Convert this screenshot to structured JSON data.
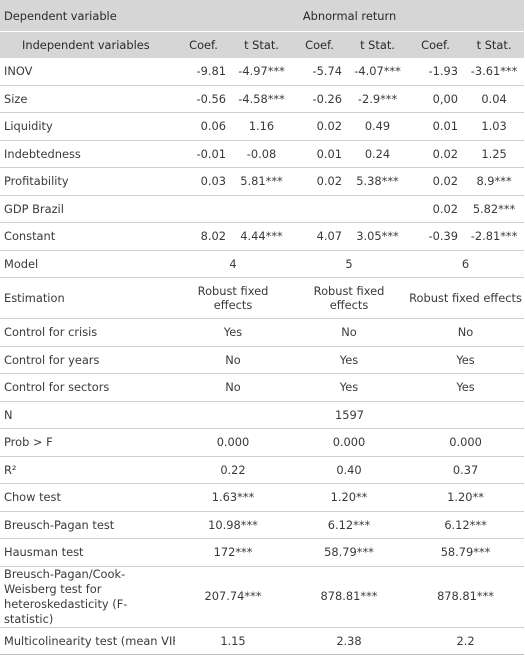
{
  "header": {
    "dependent_label": "Dependent variable",
    "dependent_value": "Abnormal return",
    "independent_label": "Independent variables",
    "columns": [
      "Coef.",
      "t Stat.",
      "Coef.",
      "t Stat.",
      "Coef.",
      "t Stat."
    ]
  },
  "rows": [
    {
      "label": "INOV",
      "cells": [
        "-9.81",
        "-4.97***",
        "-5.74",
        "-4.07***",
        "-1.93",
        "-3.61***"
      ]
    },
    {
      "label": "Size",
      "cells": [
        "-0.56",
        "-4.58***",
        "-0.26",
        "-2.9***",
        "0,00",
        "0.04"
      ]
    },
    {
      "label": "Liquidity",
      "cells": [
        "0.06",
        "1.16",
        "0.02",
        "0.49",
        "0.01",
        "1.03"
      ]
    },
    {
      "label": "Indebtedness",
      "cells": [
        "-0.01",
        "-0.08",
        "0.01",
        "0.24",
        "0.02",
        "1.25"
      ]
    },
    {
      "label": "Profitability",
      "cells": [
        "0.03",
        "5.81***",
        "0.02",
        "5.38***",
        "0.02",
        "8.9***"
      ]
    },
    {
      "label": "GDP Brazil",
      "cells": [
        "",
        "",
        "",
        "",
        "0.02",
        "5.82***"
      ]
    },
    {
      "label": "Constant",
      "cells": [
        "8.02",
        "4.44***",
        "4.07",
        "3.05***",
        "-0.39",
        "-2.81***"
      ]
    }
  ],
  "summary": [
    {
      "label": "Model",
      "values": [
        "4",
        "5",
        "6"
      ]
    },
    {
      "label": "Estimation",
      "values": [
        "Robust fixed effects",
        "Robust fixed effects",
        "Robust fixed effects"
      ]
    },
    {
      "label": "Control for crisis",
      "values": [
        "Yes",
        "No",
        "No"
      ]
    },
    {
      "label": "Control for years",
      "values": [
        "No",
        "Yes",
        "Yes"
      ]
    },
    {
      "label": "Control for sectors",
      "values": [
        "No",
        "Yes",
        "Yes"
      ]
    },
    {
      "label": "N",
      "span_value": "1597"
    },
    {
      "label": "Prob > F",
      "values": [
        "0.000",
        "0.000",
        "0.000"
      ]
    },
    {
      "label": "R²",
      "values": [
        "0.22",
        "0.40",
        "0.37"
      ]
    },
    {
      "label": "Chow test",
      "values": [
        "1.63***",
        "1.20**",
        "1.20**"
      ]
    },
    {
      "label": "Breusch-Pagan test",
      "values": [
        "10.98***",
        "6.12***",
        "6.12***"
      ]
    },
    {
      "label": "Hausman test",
      "values": [
        "172***",
        "58.79***",
        "58.79***"
      ]
    },
    {
      "label": "Breusch-Pagan/Cook-Weisberg test for heteroskedasticity (F-statistic)",
      "values": [
        "207.74***",
        "878.81***",
        "878.81***"
      ]
    },
    {
      "label": "Multicolinearity test (mean VIF)",
      "values": [
        "1.15",
        "2.38",
        "2.2"
      ]
    }
  ]
}
